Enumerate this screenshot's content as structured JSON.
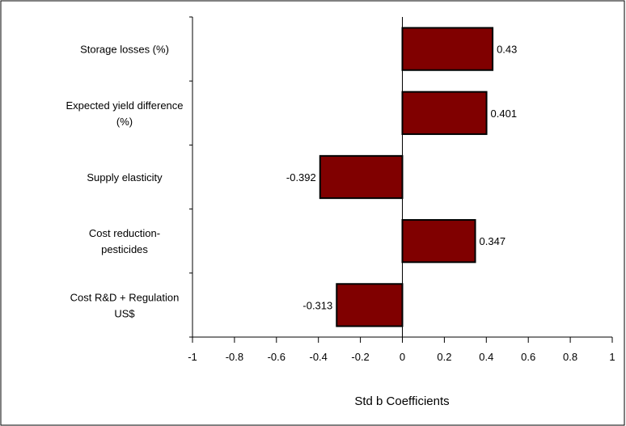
{
  "chart_data": {
    "type": "bar",
    "orientation": "horizontal",
    "categories": [
      [
        "Storage losses (%)"
      ],
      [
        "Expected yield difference",
        "(%)"
      ],
      [
        "Supply elasticity"
      ],
      [
        "Cost reduction-",
        "pesticides"
      ],
      [
        "Cost R&D + Regulation",
        "US$"
      ]
    ],
    "values": [
      0.43,
      0.401,
      -0.392,
      0.347,
      -0.313
    ],
    "data_labels": [
      "0.43",
      "0.401",
      "-0.392",
      "0.347",
      "-0.313"
    ],
    "xlabel": "Std b Coefficients",
    "xlim": [
      -1,
      1
    ],
    "xticks": [
      -1,
      -0.8,
      -0.6,
      -0.4,
      -0.2,
      0,
      0.2,
      0.4,
      0.6,
      0.8,
      1
    ],
    "xtick_labels": [
      "-1",
      "-0.8",
      "-0.6",
      "-0.4",
      "-0.2",
      "0",
      "0.2",
      "0.4",
      "0.6",
      "0.8",
      "1"
    ],
    "bar_color": "#800000",
    "grid": false,
    "legend": "none"
  }
}
